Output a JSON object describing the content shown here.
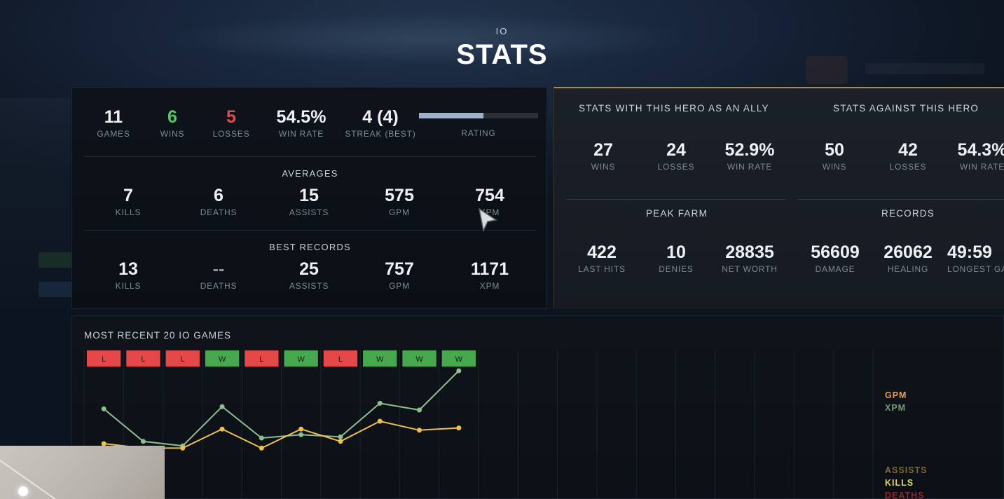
{
  "header": {
    "hero": "IO",
    "title": "STATS"
  },
  "overview": {
    "games": {
      "value": "11",
      "label": "GAMES"
    },
    "wins": {
      "value": "6",
      "label": "WINS"
    },
    "losses": {
      "value": "5",
      "label": "LOSSES"
    },
    "win_rate": {
      "value": "54.5%",
      "label": "WIN RATE"
    },
    "streak": {
      "value": "4 (4)",
      "label": "STREAK (BEST)"
    },
    "rating": {
      "label": "RATING",
      "fill": 0.54
    }
  },
  "averages": {
    "title": "AVERAGES",
    "items": [
      {
        "value": "7",
        "label": "KILLS"
      },
      {
        "value": "6",
        "label": "DEATHS"
      },
      {
        "value": "15",
        "label": "ASSISTS"
      },
      {
        "value": "575",
        "label": "GPM"
      },
      {
        "value": "754",
        "label": "XPM"
      }
    ]
  },
  "best_records": {
    "title": "BEST RECORDS",
    "items": [
      {
        "value": "13",
        "label": "KILLS"
      },
      {
        "value": "--",
        "label": "DEATHS"
      },
      {
        "value": "25",
        "label": "ASSISTS"
      },
      {
        "value": "757",
        "label": "GPM"
      },
      {
        "value": "1171",
        "label": "XPM"
      }
    ]
  },
  "ally": {
    "title": "STATS WITH THIS HERO AS AN ALLY",
    "items": [
      {
        "value": "27",
        "label": "WINS"
      },
      {
        "value": "24",
        "label": "LOSSES"
      },
      {
        "value": "52.9%",
        "label": "WIN RATE"
      }
    ]
  },
  "against": {
    "title": "STATS AGAINST THIS HERO",
    "items": [
      {
        "value": "50",
        "label": "WINS"
      },
      {
        "value": "42",
        "label": "LOSSES"
      },
      {
        "value": "54.3%",
        "label": "WIN RATE"
      }
    ]
  },
  "peak_farm": {
    "title": "PEAK FARM",
    "items": [
      {
        "value": "422",
        "label": "LAST HITS"
      },
      {
        "value": "10",
        "label": "DENIES"
      },
      {
        "value": "28835",
        "label": "NET WORTH"
      }
    ]
  },
  "records": {
    "title": "RECORDS",
    "items": [
      {
        "value": "56609",
        "label": "DAMAGE"
      },
      {
        "value": "26062",
        "label": "HEALING"
      },
      {
        "value": "49:59",
        "label": "LONGEST GA"
      }
    ]
  },
  "recent": {
    "title": "MOST RECENT 20 IO GAMES",
    "results": [
      "L",
      "L",
      "L",
      "W",
      "L",
      "W",
      "L",
      "W",
      "W",
      "W"
    ],
    "legend": [
      {
        "label": "GPM",
        "color": "#e8a04a"
      },
      {
        "label": "XPM",
        "color": "#6f9f72"
      },
      {
        "label": "ASSISTS",
        "color": "#7a6a3a"
      },
      {
        "label": "KILLS",
        "color": "#d8d86a"
      },
      {
        "label": "DEATHS",
        "color": "#8a2a2a"
      }
    ]
  },
  "chart_data": {
    "type": "line",
    "x": [
      1,
      2,
      3,
      4,
      5,
      6,
      7,
      8,
      9,
      10
    ],
    "series": [
      {
        "name": "XPM",
        "color": "#8fbf8f",
        "values": [
          705,
          560,
          540,
          715,
          575,
          590,
          580,
          730,
          700,
          875
        ]
      },
      {
        "name": "GPM",
        "color": "#f0c04a",
        "values": [
          550,
          530,
          530,
          615,
          530,
          615,
          560,
          650,
          610,
          620
        ]
      }
    ],
    "ylim": [
      300,
      900
    ]
  },
  "colors": {
    "loss": "#e54848",
    "win": "#46a94e",
    "accent": "#a88a4a"
  }
}
